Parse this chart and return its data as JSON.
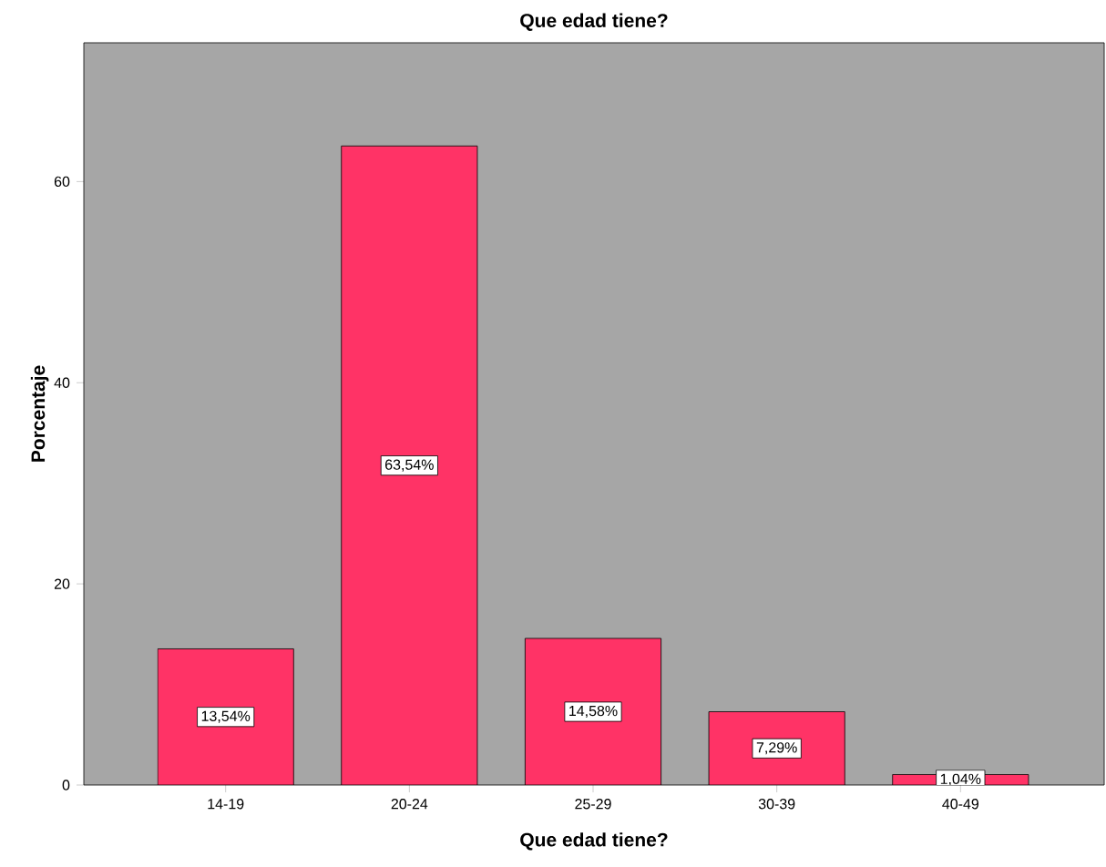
{
  "chart_data": {
    "type": "bar",
    "title": "Que edad tiene?",
    "xlabel": "Que edad tiene?",
    "ylabel": "Porcentaje",
    "categories": [
      "14-19",
      "20-24",
      "25-29",
      "30-39",
      "40-49"
    ],
    "values": [
      13.54,
      63.54,
      14.58,
      7.29,
      1.04
    ],
    "value_labels": [
      "13,54%",
      "63,54%",
      "14,58%",
      "7,29%",
      "1,04%"
    ],
    "color": "#ff3366",
    "ylim": [
      0,
      73.8
    ],
    "yticks": [
      0,
      20,
      40,
      60
    ]
  }
}
